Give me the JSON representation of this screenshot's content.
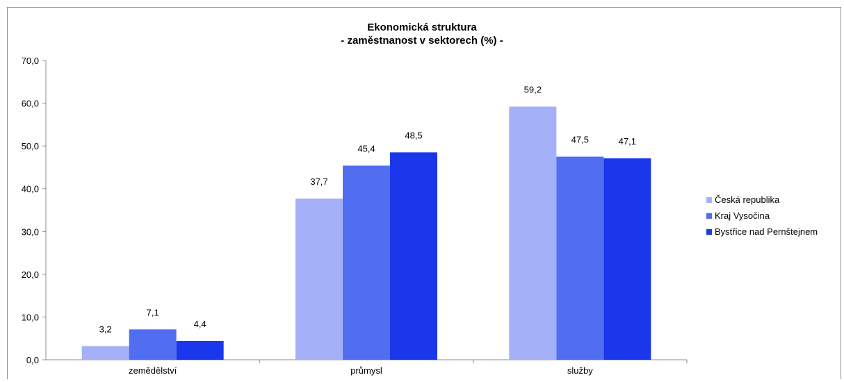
{
  "chart_data": {
    "type": "bar",
    "title": "Ekonomická struktura",
    "subtitle": "- zaměstnanost v sektorech  (%) -",
    "categories": [
      "zemědělství",
      "průmysl",
      "služby"
    ],
    "series": [
      {
        "name": "Česká republika",
        "values": [
          3.2,
          37.7,
          59.2
        ],
        "color": "#a3b0f7",
        "labels": [
          "3,2",
          "37,7",
          "59,2"
        ]
      },
      {
        "name": "Kraj Vysočina",
        "values": [
          7.1,
          45.4,
          47.5
        ],
        "color": "#526ef0",
        "labels": [
          "7,1",
          "45,4",
          "47,5"
        ]
      },
      {
        "name": "Bystřice nad Pernštejnem",
        "values": [
          4.4,
          48.5,
          47.1
        ],
        "color": "#1a37ec",
        "labels": [
          "4,4",
          "48,5",
          "47,1"
        ]
      }
    ],
    "ylim": [
      0,
      70
    ],
    "yticks": [
      "0,0",
      "10,0",
      "20,0",
      "30,0",
      "40,0",
      "50,0",
      "60,0",
      "70,0"
    ],
    "xlabel": "",
    "ylabel": "",
    "grid": false,
    "legend_position": "right"
  }
}
